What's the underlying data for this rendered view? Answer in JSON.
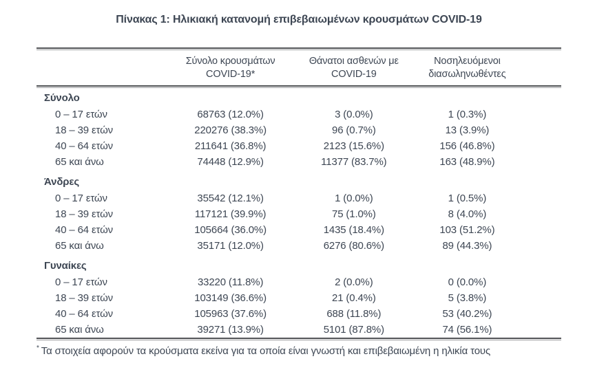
{
  "title": "Πίνακας 1: Ηλικιακή κατανομή επιβεβαιωμένων κρουσμάτων COVID-19",
  "table": {
    "columns": [
      {
        "line1": "",
        "line2": ""
      },
      {
        "line1": "Σύνολο κρουσμάτων",
        "line2": "COVID-19*"
      },
      {
        "line1": "Θάνατοι ασθενών με",
        "line2": "COVID-19"
      },
      {
        "line1": "Νοσηλευόμενοι",
        "line2": "διασωληνωθέντες"
      }
    ],
    "sections": [
      {
        "label": "Σύνολο",
        "rows": [
          {
            "age": "0 – 17 ετών",
            "cases": "68763 (12.0%)",
            "deaths": "3 (0.0%)",
            "intubated": "1 (0.3%)"
          },
          {
            "age": "18 – 39 ετών",
            "cases": "220276 (38.3%)",
            "deaths": "96 (0.7%)",
            "intubated": "13 (3.9%)"
          },
          {
            "age": "40 – 64 ετών",
            "cases": "211641 (36.8%)",
            "deaths": "2123 (15.6%)",
            "intubated": "156 (46.8%)"
          },
          {
            "age": "65 και άνω",
            "cases": "74448 (12.9%)",
            "deaths": "11377 (83.7%)",
            "intubated": "163 (48.9%)"
          }
        ]
      },
      {
        "label": "Άνδρες",
        "rows": [
          {
            "age": "0 – 17 ετών",
            "cases": "35542 (12.1%)",
            "deaths": "1 (0.0%)",
            "intubated": "1 (0.5%)"
          },
          {
            "age": "18 – 39 ετών",
            "cases": "117121 (39.9%)",
            "deaths": "75 (1.0%)",
            "intubated": "8 (4.0%)"
          },
          {
            "age": "40 – 64 ετών",
            "cases": "105664 (36.0%)",
            "deaths": "1435 (18.4%)",
            "intubated": "103 (51.2%)"
          },
          {
            "age": "65 και άνω",
            "cases": "35171 (12.0%)",
            "deaths": "6276 (80.6%)",
            "intubated": "89 (44.3%)"
          }
        ]
      },
      {
        "label": "Γυναίκες",
        "rows": [
          {
            "age": "0 – 17 ετών",
            "cases": "33220 (11.8%)",
            "deaths": "2 (0.0%)",
            "intubated": "0 (0.0%)"
          },
          {
            "age": "18 – 39 ετών",
            "cases": "103149 (36.6%)",
            "deaths": "21 (0.4%)",
            "intubated": "5 (3.8%)"
          },
          {
            "age": "40 – 64 ετών",
            "cases": "105963 (37.6%)",
            "deaths": "688 (11.8%)",
            "intubated": "53 (40.2%)"
          },
          {
            "age": "65 και άνω",
            "cases": "39271 (13.9%)",
            "deaths": "5101 (87.8%)",
            "intubated": "74 (56.1%)"
          }
        ]
      }
    ]
  },
  "footnote": {
    "marker": "*",
    "text": "Τα στοιχεία αφορούν τα κρούσματα εκείνα για τα οποία είναι γνωστή και επιβεβαιωμένη η ηλικία τους"
  },
  "colors": {
    "text": "#3d4653",
    "rule_dark": "#515356",
    "rule_light": "#9a9b9e"
  }
}
